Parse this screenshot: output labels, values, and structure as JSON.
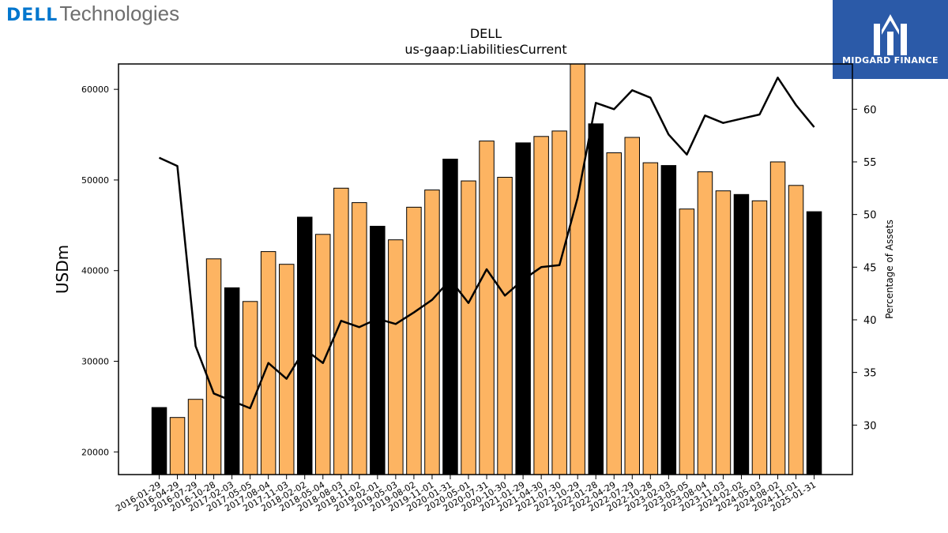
{
  "brand": {
    "dell": "DELL",
    "technologies": "Technologies",
    "midgard": "MIDGARD FINANCE"
  },
  "colors": {
    "bar_orange": "#fdb462",
    "bar_black": "#000000",
    "line": "#000000",
    "midgard_bg": "#2b5aa8",
    "dell_blue": "#0076ce"
  },
  "chart_data": {
    "type": "bar",
    "title": "DELL",
    "subtitle": "us-gaap:LiabilitiesCurrent",
    "ylabel": "USDm",
    "y2label": "Percentage of Assets",
    "ylim": [
      17500,
      62800
    ],
    "y2lim": [
      25.3,
      64.3
    ],
    "yticks": [
      "20000",
      "30000",
      "40000",
      "50000",
      "60000"
    ],
    "y2ticks": [
      "30",
      "35",
      "40",
      "45",
      "50",
      "55",
      "60"
    ],
    "categories": [
      "2016-01-29",
      "2016-04-29",
      "2016-07-29",
      "2016-10-28",
      "2017-02-03",
      "2017-05-05",
      "2017-08-04",
      "2017-11-03",
      "2018-02-02",
      "2018-05-04",
      "2018-08-03",
      "2018-11-02",
      "2019-02-01",
      "2019-05-03",
      "2019-08-02",
      "2019-11-01",
      "2020-01-31",
      "2020-05-01",
      "2020-07-31",
      "2020-10-30",
      "2021-01-29",
      "2021-04-30",
      "2021-07-30",
      "2021-10-29",
      "2022-01-28",
      "2022-04-29",
      "2022-07-29",
      "2022-10-28",
      "2023-02-03",
      "2023-05-05",
      "2023-08-04",
      "2023-11-03",
      "2024-02-02",
      "2024-05-03",
      "2024-08-02",
      "2024-11-01",
      "2025-01-31"
    ],
    "series": [
      {
        "values": [
          24900,
          23800,
          25800,
          41300,
          38100,
          36600,
          42100,
          40700,
          45900,
          44000,
          49100,
          47500,
          44900,
          43400,
          47000,
          48900,
          52300,
          49900,
          54300,
          50300,
          54100,
          54800,
          55400,
          62800,
          56200,
          53000,
          54700,
          51900,
          51600,
          46800,
          50900,
          48800,
          48400,
          47700,
          52000,
          49400,
          46500
        ]
      },
      {
        "type": "line",
        "values": [
          55.4,
          54.6,
          37.5,
          33.0,
          32.3,
          31.6,
          35.9,
          34.4,
          37.2,
          35.9,
          39.9,
          39.3,
          40.1,
          39.6,
          40.7,
          41.9,
          43.8,
          41.6,
          44.8,
          42.3,
          43.8,
          45.0,
          45.2,
          51.6,
          60.6,
          60.0,
          61.8,
          61.1,
          57.6,
          55.7,
          59.4,
          58.7,
          59.1,
          59.5,
          63.0,
          60.4,
          58.3
        ]
      }
    ],
    "bar_highlight": [
      true,
      false,
      false,
      false,
      true,
      false,
      false,
      false,
      true,
      false,
      false,
      false,
      true,
      false,
      false,
      false,
      true,
      false,
      false,
      false,
      true,
      false,
      false,
      false,
      true,
      false,
      false,
      false,
      true,
      false,
      false,
      false,
      true,
      false,
      false,
      false,
      true
    ]
  }
}
